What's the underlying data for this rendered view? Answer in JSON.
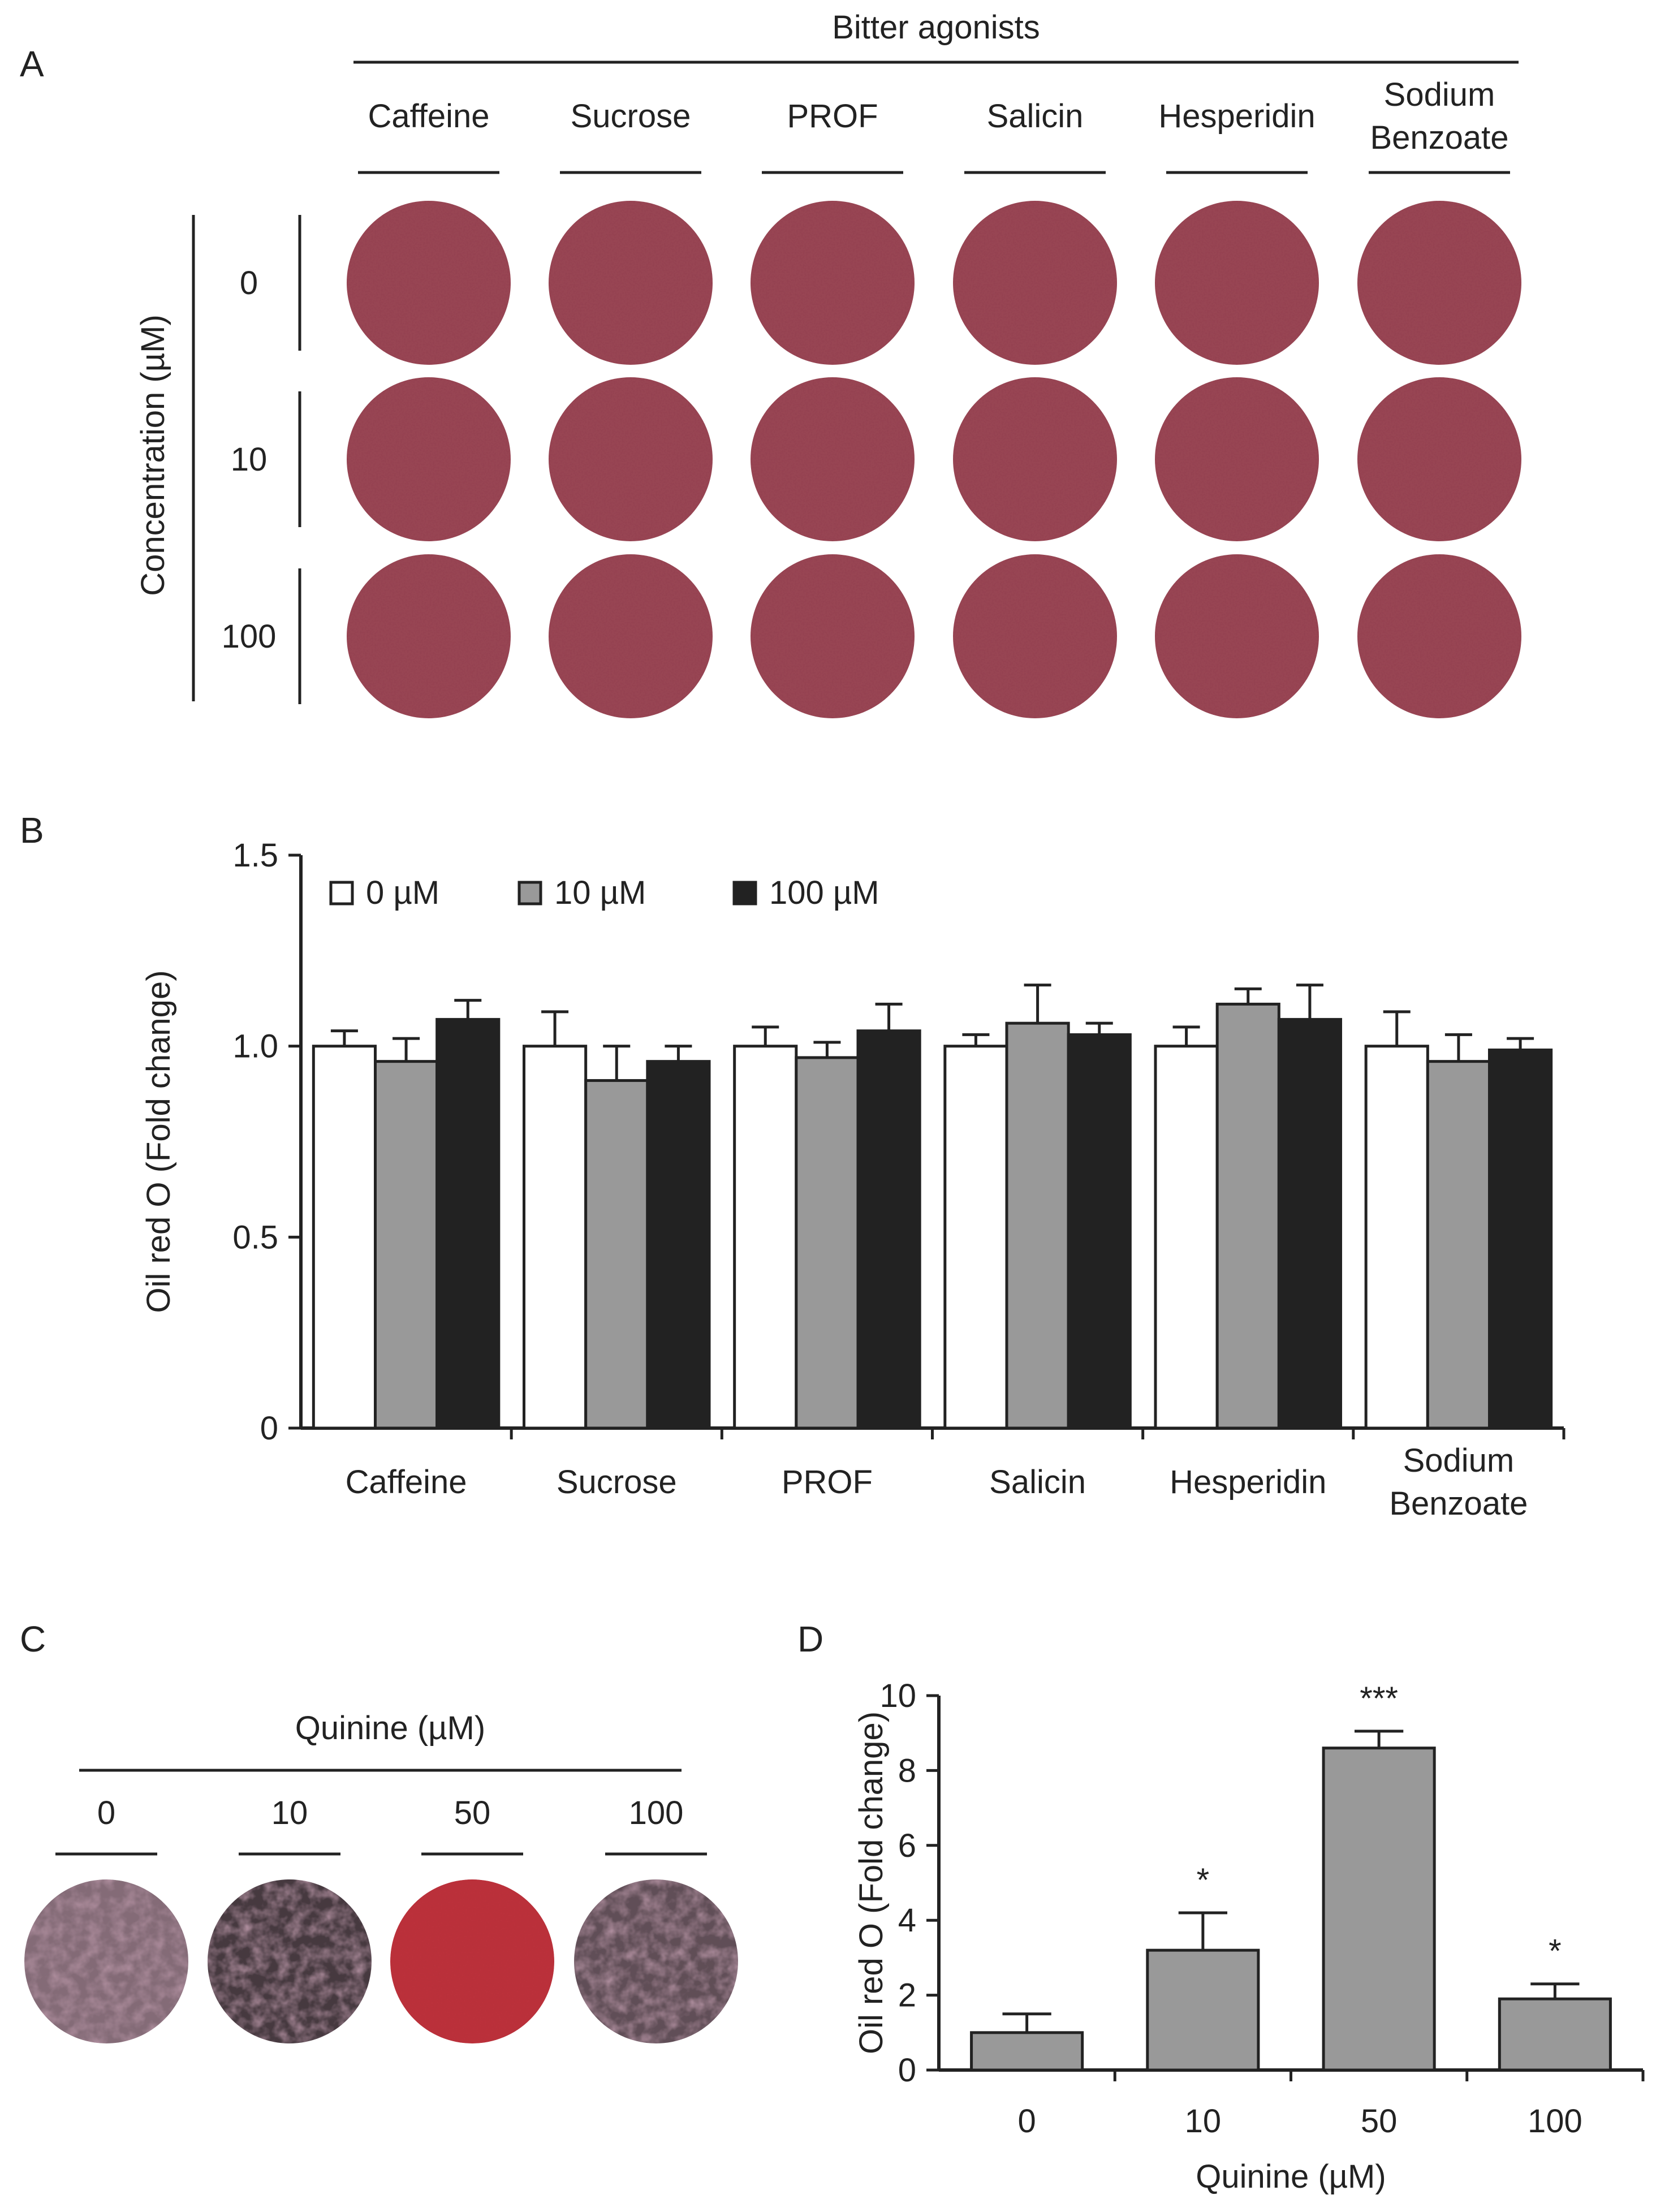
{
  "panels": {
    "a": "A",
    "b": "B",
    "c": "C",
    "d": "D"
  },
  "colors": {
    "dish_agonist": "#9a4554",
    "dish_quinine_light": "#b08f9f",
    "dish_quinine_dark": "#b62834",
    "bar_0": "#ffffff",
    "bar_10": "#999999",
    "bar_100": "#222222",
    "bar_quinine": "#999999"
  },
  "panel_a": {
    "group_label": "Bitter agonists",
    "compounds": [
      "Caffeine",
      "Sucrose",
      "PROF",
      "Salicin",
      "Hesperidin",
      "Sodium\nBenzoate"
    ],
    "row_axis_label": "Concentration (µM)",
    "concentrations": [
      "0",
      "10",
      "100"
    ]
  },
  "chart_data": [
    {
      "type": "bar",
      "panel": "B",
      "categories": [
        "Caffeine",
        "Sucrose",
        "PROF",
        "Salicin",
        "Hesperidin",
        "Sodium\nBenzoate"
      ],
      "series": [
        {
          "name": "0 µM",
          "color": "#ffffff",
          "values": [
            1.0,
            1.0,
            1.0,
            1.0,
            1.0,
            1.0
          ],
          "errors": [
            0.04,
            0.09,
            0.05,
            0.03,
            0.05,
            0.09
          ]
        },
        {
          "name": "10 µM",
          "color": "#999999",
          "values": [
            0.96,
            0.91,
            0.97,
            1.06,
            1.11,
            0.96
          ],
          "errors": [
            0.06,
            0.09,
            0.04,
            0.1,
            0.04,
            0.07
          ]
        },
        {
          "name": "100 µM",
          "color": "#222222",
          "values": [
            1.07,
            0.96,
            1.04,
            1.03,
            1.07,
            0.99
          ],
          "errors": [
            0.05,
            0.04,
            0.07,
            0.03,
            0.09,
            0.03
          ]
        }
      ],
      "ylabel": "Oil red O (Fold change)",
      "xlabel": "",
      "ylim": [
        0,
        1.5
      ],
      "yticks": [
        "0",
        "0.5",
        "1.0",
        "1.5"
      ],
      "legend_position": "top-left"
    },
    {
      "type": "bar",
      "panel": "D",
      "categories": [
        "0",
        "10",
        "50",
        "100"
      ],
      "series": [
        {
          "color": "#999999",
          "values": [
            1.0,
            3.2,
            8.6,
            1.9
          ],
          "errors": [
            0.5,
            1.0,
            0.45,
            0.4
          ],
          "significance": [
            "",
            "*",
            "***",
            "*"
          ]
        }
      ],
      "ylabel": "Oil red O (Fold change)",
      "xlabel": "Quinine (µM)",
      "ylim": [
        0,
        10
      ],
      "yticks": [
        "0",
        "2",
        "4",
        "6",
        "8",
        "10"
      ]
    }
  ],
  "panel_c": {
    "group_label": "Quinine (µM)",
    "concentrations": [
      "0",
      "10",
      "50",
      "100"
    ]
  }
}
